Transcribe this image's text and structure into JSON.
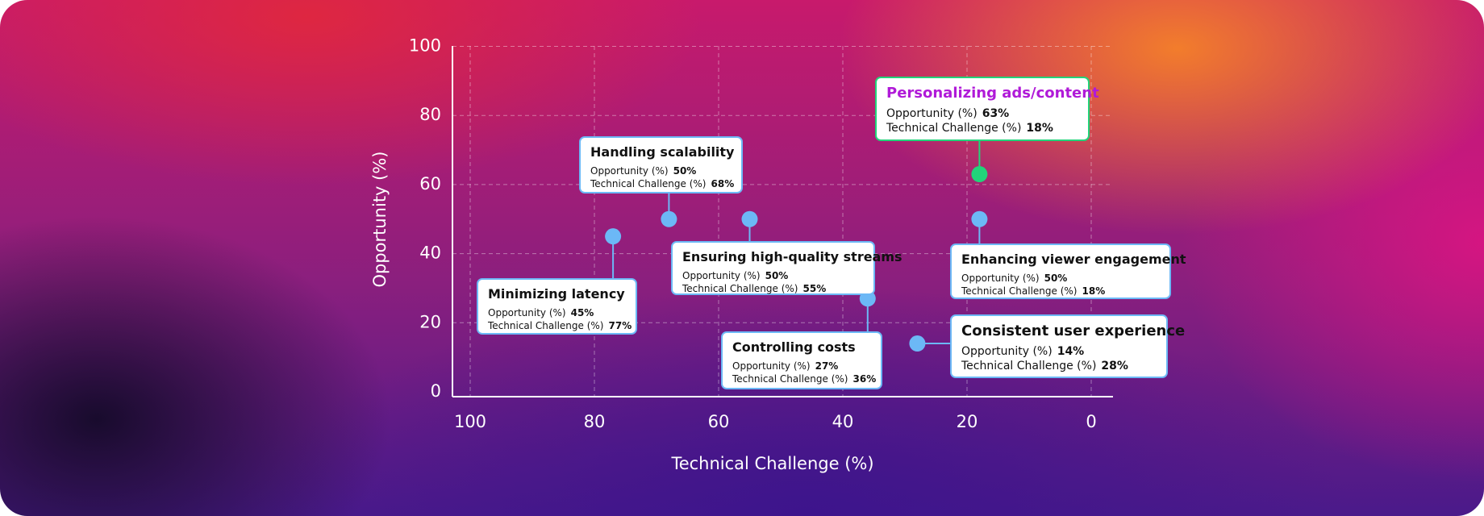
{
  "chart_data": {
    "type": "scatter",
    "xlabel": "Technical Challenge (%)",
    "ylabel": "Opportunity (%)",
    "xlim": [
      100,
      0
    ],
    "ylim": [
      0,
      100
    ],
    "xticks": [
      100,
      80,
      60,
      40,
      20,
      0
    ],
    "yticks": [
      0,
      20,
      40,
      60,
      80,
      100
    ],
    "grid": true,
    "series": [
      {
        "name": "Minimizing latency",
        "color": "#6cb8f6",
        "x": [
          77
        ],
        "values": [
          45
        ],
        "x_labels": [
          "77%"
        ],
        "value_labels": [
          "45%"
        ]
      },
      {
        "name": "Handling scalability",
        "color": "#6cb8f6",
        "x": [
          68
        ],
        "values": [
          50
        ],
        "x_labels": [
          "68%"
        ],
        "value_labels": [
          "50%"
        ]
      },
      {
        "name": "Ensuring high-quality streams",
        "color": "#6cb8f6",
        "x": [
          55
        ],
        "values": [
          50
        ],
        "x_labels": [
          "55%"
        ],
        "value_labels": [
          "50%"
        ]
      },
      {
        "name": "Controlling costs",
        "color": "#6cb8f6",
        "x": [
          36
        ],
        "values": [
          27
        ],
        "x_labels": [
          "36%"
        ],
        "value_labels": [
          "27%"
        ]
      },
      {
        "name": "Consistent user experience",
        "color": "#6cb8f6",
        "x": [
          28
        ],
        "values": [
          14
        ],
        "x_labels": [
          "28%"
        ],
        "value_labels": [
          "14%"
        ]
      },
      {
        "name": "Personalizing ads/content",
        "color": "#22d47a",
        "name_color": "#b01ad8",
        "x": [
          18
        ],
        "values": [
          63
        ],
        "x_labels": [
          "18%"
        ],
        "value_labels": [
          "63%"
        ]
      },
      {
        "name": "Enhancing viewer engagement",
        "color": "#6cb8f6",
        "x": [
          18
        ],
        "values": [
          50
        ],
        "x_labels": [
          "18%"
        ],
        "value_labels": [
          "50%"
        ]
      }
    ]
  }
}
